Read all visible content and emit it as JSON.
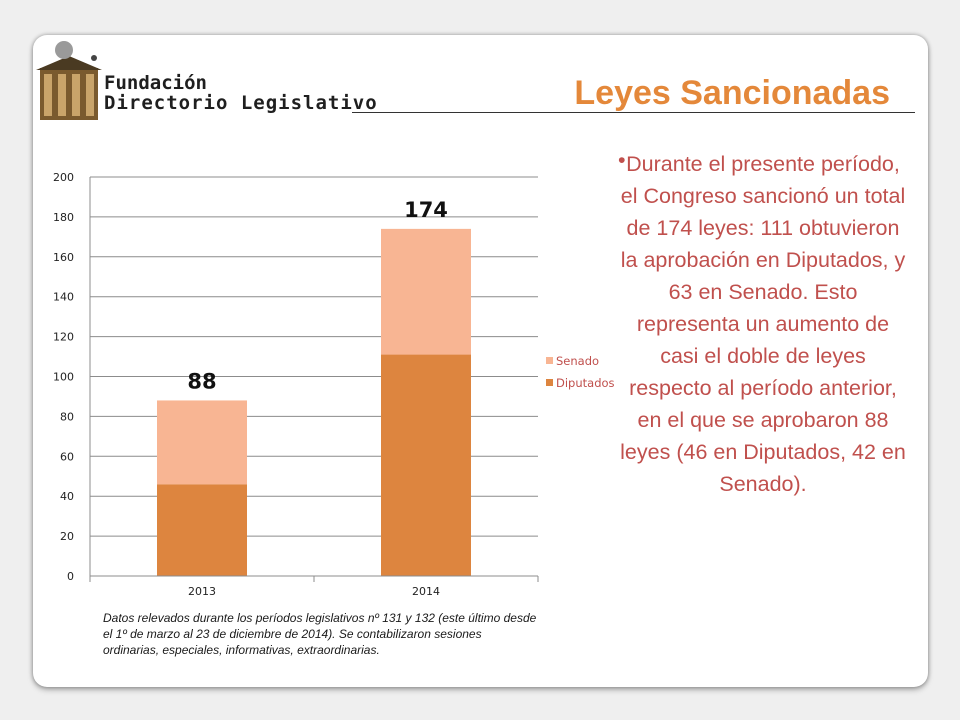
{
  "logo": {
    "line1": "Fundación",
    "line2": "Directorio Legislativo"
  },
  "title": "Leyes Sancionadas",
  "body": {
    "bullet": "•",
    "text": "Durante el presente período, el Congreso sancionó un total de 174 leyes: 111 obtuvieron la aprobación en Diputados, y 63 en Senado. Esto representa un aumento de casi el doble de leyes respecto al período anterior, en el que se aprobaron 88 leyes (46 en Diputados, 42 en Senado)."
  },
  "note": "Datos relevados durante los períodos legislativos nº  131 y 132 (este último desde el 1º de marzo al 23 de diciembre de 2014). Se contabilizaron sesiones ordinarias, especiales, informativas, extraordinarias.",
  "colors": {
    "senado": "#f8b593",
    "diputados": "#dd853f",
    "title": "#e4883a",
    "text": "#c0504d"
  },
  "chart_data": {
    "type": "bar",
    "stacked": true,
    "categories": [
      "2013",
      "2014"
    ],
    "series": [
      {
        "name": "Diputados",
        "values": [
          46,
          111
        ]
      },
      {
        "name": "Senado",
        "values": [
          42,
          63
        ]
      }
    ],
    "totals": [
      "88",
      "174"
    ],
    "ylim": [
      0,
      200
    ],
    "yticks": [
      0,
      20,
      40,
      60,
      80,
      100,
      120,
      140,
      160,
      180,
      200
    ],
    "grid": true,
    "legend": [
      "Senado",
      "Diputados"
    ],
    "legend_position": "right"
  }
}
